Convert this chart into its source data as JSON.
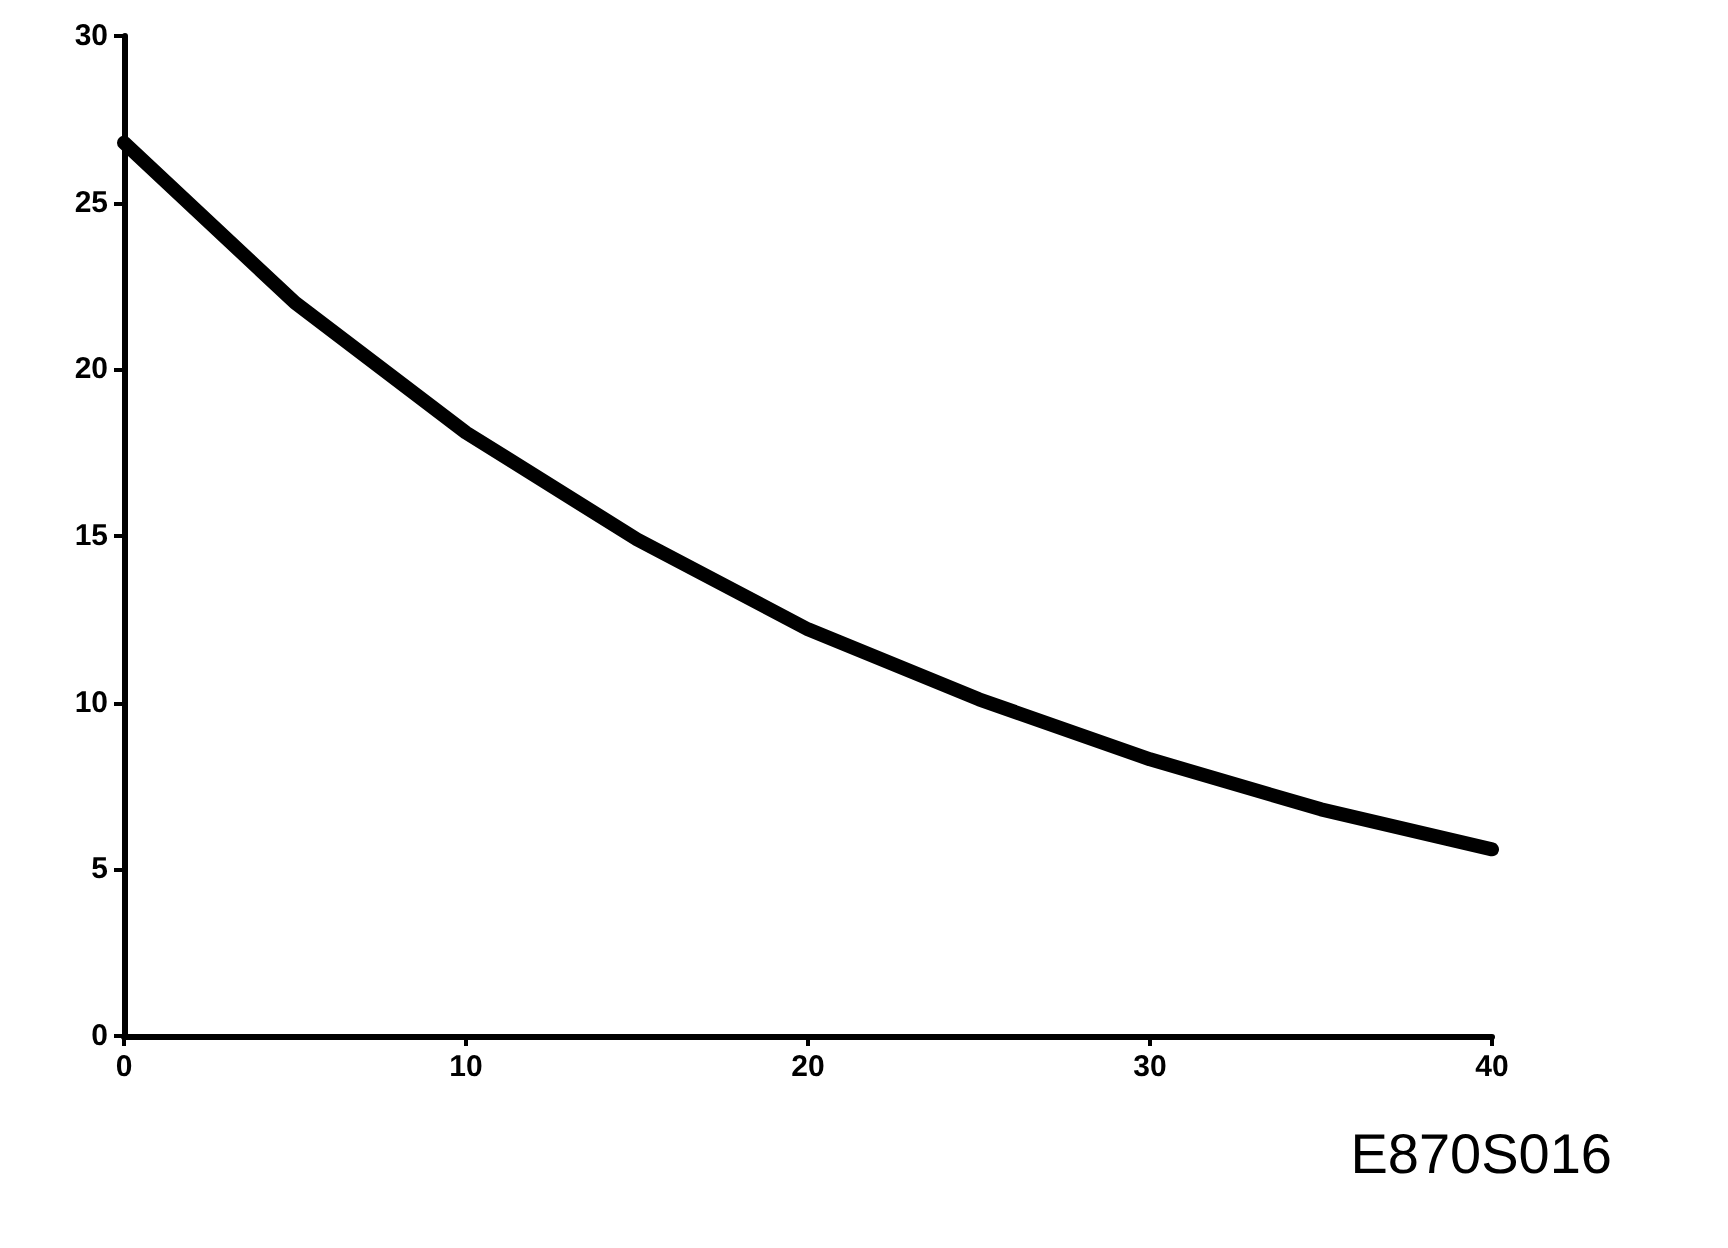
{
  "chart_data": {
    "type": "line",
    "x": [
      0,
      5,
      10,
      15,
      20,
      25,
      30,
      35,
      40
    ],
    "series": [
      {
        "color": "#000000",
        "values": [
          26.8,
          22.0,
          18.1,
          14.9,
          12.2,
          10.1,
          8.3,
          6.8,
          5.6
        ]
      }
    ],
    "xlim": [
      0,
      40
    ],
    "xticks": [
      0,
      10,
      20,
      30,
      40
    ],
    "ylim": [
      0,
      30
    ],
    "yticks": [
      0,
      5,
      10,
      15,
      20,
      25,
      30
    ],
    "grid": false,
    "line_style": "solid",
    "annotations": [
      "E870S016"
    ]
  }
}
